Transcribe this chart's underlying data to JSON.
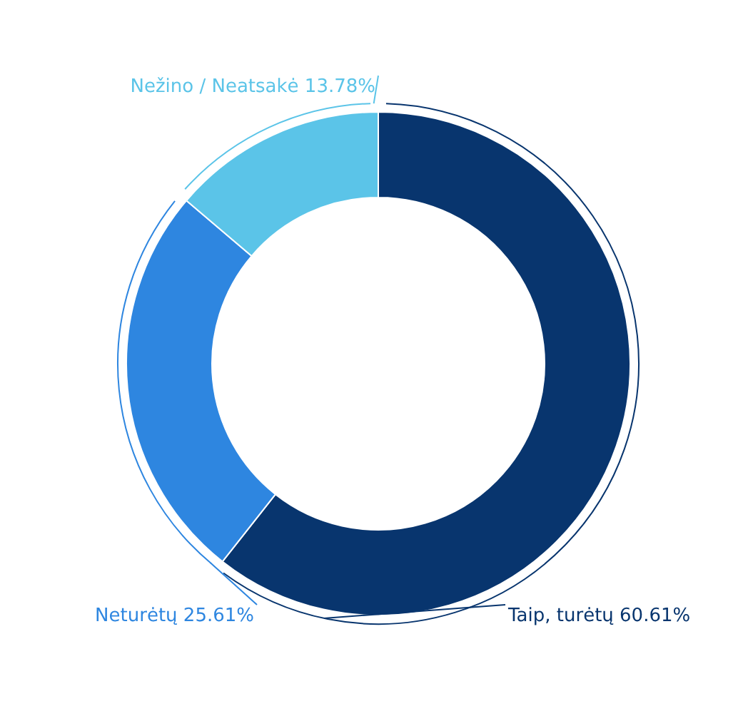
{
  "chart_data": {
    "type": "donut",
    "categories": [
      "Taip, turėtų",
      "Neturėtų",
      "Nežino / Neatsakė"
    ],
    "values": [
      60.61,
      25.61,
      13.78
    ],
    "value_labels": [
      "60.61%",
      "25.61%",
      "13.78%"
    ],
    "colors": [
      "#08356e",
      "#2e86e0",
      "#5bc4e8"
    ],
    "legend": false
  }
}
